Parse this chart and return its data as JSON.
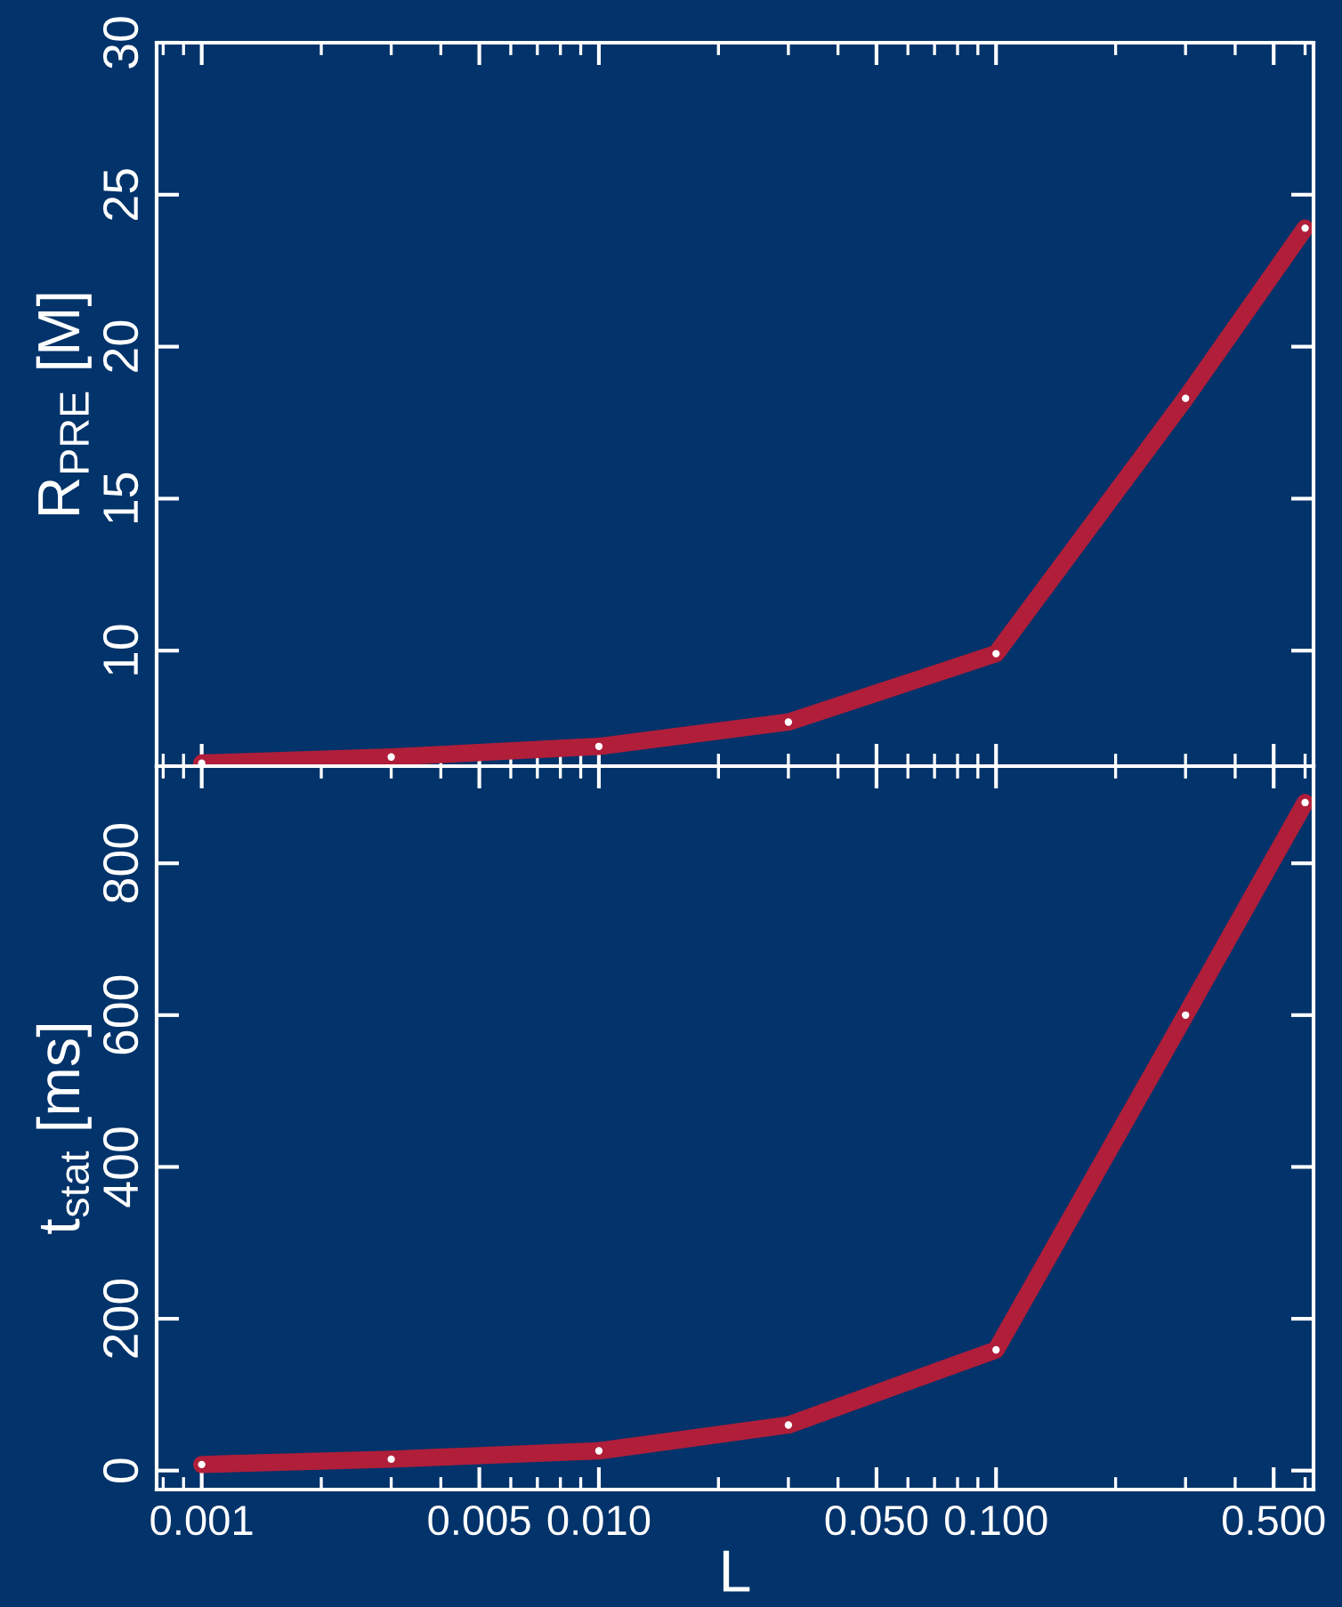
{
  "chart_data": [
    {
      "type": "line",
      "ylabel": "R$_{PRE}$ [M]",
      "x": [
        0.001,
        0.003,
        0.01,
        0.03,
        0.1,
        0.3,
        0.6
      ],
      "log": "x",
      "xlim": [
        0.00077,
        0.63
      ],
      "xticks": [
        {
          "value": 0.001,
          "label": null
        },
        {
          "value": 0.005,
          "label": null
        },
        {
          "value": 0.01,
          "label": null
        },
        {
          "value": 0.05,
          "label": null
        },
        {
          "value": 0.1,
          "label": null
        },
        {
          "value": 0.5,
          "label": null
        }
      ],
      "ylim": [
        6.2,
        30
      ],
      "yticks": [
        10,
        15,
        20,
        25,
        30
      ],
      "tick_labels": "y",
      "grid": false,
      "marker": "circle",
      "line_style": "solid",
      "series": [
        {
          "color": "#b01e3a",
          "values": [
            6.3,
            6.5,
            6.85,
            7.65,
            9.9,
            18.3,
            23.9
          ]
        }
      ]
    },
    {
      "type": "line",
      "ylabel": "t$_{stat}$ [ms]",
      "xlabel": "L",
      "x": [
        0.001,
        0.003,
        0.01,
        0.03,
        0.1,
        0.3,
        0.6
      ],
      "log": "x",
      "xlim": [
        0.00077,
        0.63
      ],
      "xticks": [
        {
          "value": 0.001,
          "label": "0.001"
        },
        {
          "value": 0.005,
          "label": "0.005"
        },
        {
          "value": 0.01,
          "label": "0.010"
        },
        {
          "value": 0.05,
          "label": "0.050"
        },
        {
          "value": 0.1,
          "label": "0.100"
        },
        {
          "value": 0.5,
          "label": "0.500"
        }
      ],
      "ylim": [
        -25,
        928
      ],
      "yticks": [
        0,
        200,
        400,
        600,
        800
      ],
      "grid": false,
      "marker": "circle",
      "line_style": "solid",
      "series": [
        {
          "color": "#b01e3a",
          "values": [
            8,
            15,
            26,
            60,
            159,
            600,
            880
          ]
        }
      ]
    }
  ]
}
